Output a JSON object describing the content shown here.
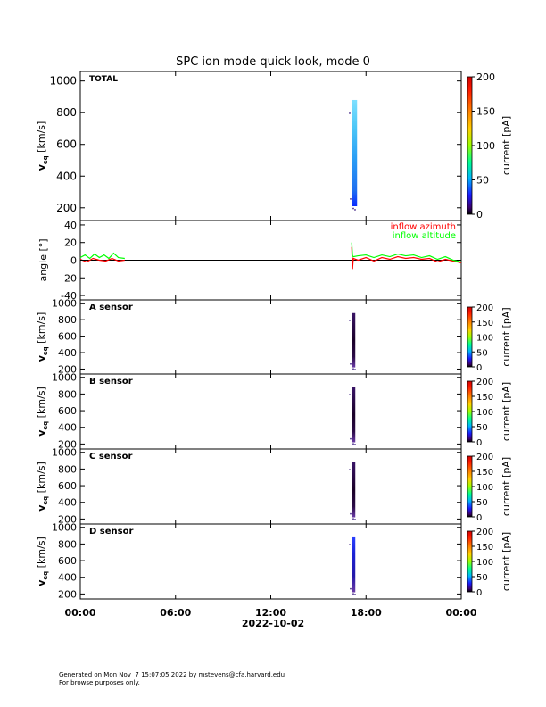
{
  "title": "SPC ion mode quick look, mode 0",
  "footer": {
    "line1": "Generated on Mon Nov  7 15:07:05 2022 by mstevens@cfa.harvard.edu",
    "line2": "For browse purposes only."
  },
  "chart_data": [
    {
      "type": "heatmap",
      "panel_label": "TOTAL",
      "ylabel_main": "v",
      "ylabel_sub": "eq",
      "ylabel_unit": "[km/s]",
      "ylim": [
        120,
        1060
      ],
      "yticks": [
        200,
        400,
        600,
        800,
        1000
      ],
      "xlim_hours": [
        0,
        24
      ],
      "x_data_range_hours": [
        17.1,
        17.3
      ],
      "v_range": [
        210,
        880
      ],
      "colorbar": {
        "label": "current [pA]",
        "ticks": [
          0,
          50,
          100,
          150,
          200
        ],
        "range": [
          0,
          200
        ]
      },
      "colormap": "rainbow (black-purple-blue-cyan-green-yellow-orange-red)",
      "fill_hint": "light blue to mid blue (low current)"
    },
    {
      "type": "line",
      "ylabel": "angle [°]",
      "ylim": [
        -45,
        45
      ],
      "yticks": [
        -40,
        -20,
        0,
        20,
        40
      ],
      "zero_line": true,
      "series": [
        {
          "name": "inflow azimuth",
          "color": "#ff0000",
          "segments": [
            [
              [
                0.0,
                1
              ],
              [
                0.4,
                -2
              ],
              [
                0.8,
                2
              ],
              [
                1.2,
                0
              ],
              [
                1.6,
                -1
              ],
              [
                2.0,
                2
              ],
              [
                2.4,
                -1
              ],
              [
                2.8,
                0
              ]
            ],
            [
              [
                17.1,
                15
              ],
              [
                17.15,
                -10
              ],
              [
                17.2,
                2
              ],
              [
                17.5,
                0
              ],
              [
                18,
                3
              ],
              [
                18.5,
                -1
              ],
              [
                19,
                3
              ],
              [
                19.5,
                1
              ],
              [
                20,
                4
              ],
              [
                20.5,
                2
              ],
              [
                21,
                3
              ],
              [
                21.5,
                1
              ],
              [
                22,
                2
              ],
              [
                22.5,
                -2
              ],
              [
                23,
                1
              ],
              [
                23.5,
                -1
              ],
              [
                24,
                -3
              ]
            ]
          ]
        },
        {
          "name": "inflow altitude",
          "color": "#00ff00",
          "segments": [
            [
              [
                0.0,
                3
              ],
              [
                0.3,
                6
              ],
              [
                0.6,
                2
              ],
              [
                0.9,
                7
              ],
              [
                1.2,
                3
              ],
              [
                1.5,
                6
              ],
              [
                1.8,
                2
              ],
              [
                2.1,
                8
              ],
              [
                2.4,
                3
              ],
              [
                2.8,
                2
              ]
            ],
            [
              [
                17.1,
                20
              ],
              [
                17.15,
                5
              ],
              [
                17.2,
                4
              ],
              [
                17.5,
                5
              ],
              [
                18,
                6
              ],
              [
                18.5,
                3
              ],
              [
                19,
                6
              ],
              [
                19.5,
                4
              ],
              [
                20,
                7
              ],
              [
                20.5,
                5
              ],
              [
                21,
                6
              ],
              [
                21.5,
                3
              ],
              [
                22,
                5
              ],
              [
                22.5,
                1
              ],
              [
                23,
                4
              ],
              [
                23.5,
                0
              ],
              [
                24,
                -2
              ]
            ]
          ]
        }
      ]
    },
    {
      "type": "heatmap",
      "panel_label": "A sensor",
      "ylabel_main": "v",
      "ylabel_sub": "eq",
      "ylabel_unit": "[km/s]",
      "ylim": [
        140,
        1040
      ],
      "yticks": [
        200,
        400,
        600,
        800,
        1000
      ],
      "v_range": [
        220,
        880
      ],
      "colorbar": {
        "label": "current [pA]",
        "ticks": [
          0,
          50,
          100,
          150,
          200
        ],
        "range": [
          0,
          200
        ]
      },
      "fill_hint": "near zero (dark)"
    },
    {
      "type": "heatmap",
      "panel_label": "B sensor",
      "ylabel_main": "v",
      "ylabel_sub": "eq",
      "ylabel_unit": "[km/s]",
      "ylim": [
        140,
        1040
      ],
      "yticks": [
        200,
        400,
        600,
        800,
        1000
      ],
      "v_range": [
        220,
        880
      ],
      "colorbar": {
        "label": "current [pA]",
        "ticks": [
          0,
          50,
          100,
          150,
          200
        ],
        "range": [
          0,
          200
        ]
      },
      "fill_hint": "near zero (dark)"
    },
    {
      "type": "heatmap",
      "panel_label": "C sensor",
      "ylabel_main": "v",
      "ylabel_sub": "eq",
      "ylabel_unit": "[km/s]",
      "ylim": [
        140,
        1040
      ],
      "yticks": [
        200,
        400,
        600,
        800,
        1000
      ],
      "v_range": [
        220,
        880
      ],
      "colorbar": {
        "label": "current [pA]",
        "ticks": [
          0,
          50,
          100,
          150,
          200
        ],
        "range": [
          0,
          200
        ]
      },
      "fill_hint": "near zero (dark)"
    },
    {
      "type": "heatmap",
      "panel_label": "D sensor",
      "ylabel_main": "v",
      "ylabel_sub": "eq",
      "ylabel_unit": "[km/s]",
      "ylim": [
        140,
        1040
      ],
      "yticks": [
        200,
        400,
        600,
        800,
        1000
      ],
      "v_range": [
        220,
        880
      ],
      "colorbar": {
        "label": "current [pA]",
        "ticks": [
          0,
          50,
          100,
          150,
          200
        ],
        "range": [
          0,
          200
        ]
      },
      "fill_hint": "low (dark blue)"
    }
  ],
  "x_axis": {
    "ticks_hours": [
      0,
      6,
      12,
      18,
      24
    ],
    "tick_labels": [
      "00:00",
      "06:00",
      "12:00",
      "18:00",
      "00:00"
    ],
    "date_label": "2022-10-02"
  }
}
